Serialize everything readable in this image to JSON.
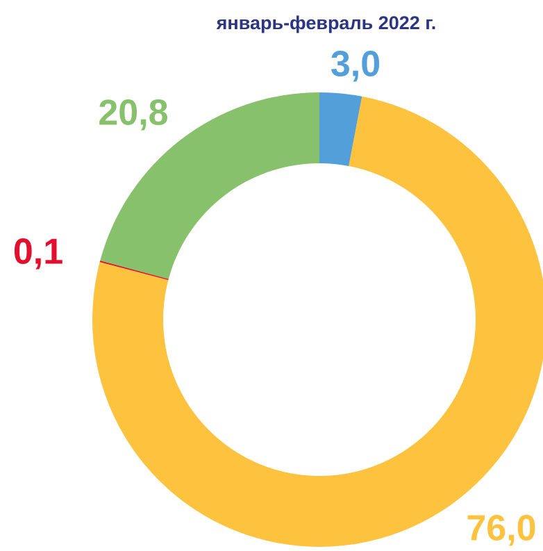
{
  "chart_data": {
    "type": "donut",
    "title": "январь-февраль 2022 г.",
    "values": [
      3.0,
      76.0,
      0.1,
      20.8
    ],
    "value_labels": [
      "3,0",
      "76,0",
      "0,1",
      "20,8"
    ],
    "colors": [
      "#529fd9",
      "#fdc23e",
      "#e0102f",
      "#88c16b"
    ]
  }
}
